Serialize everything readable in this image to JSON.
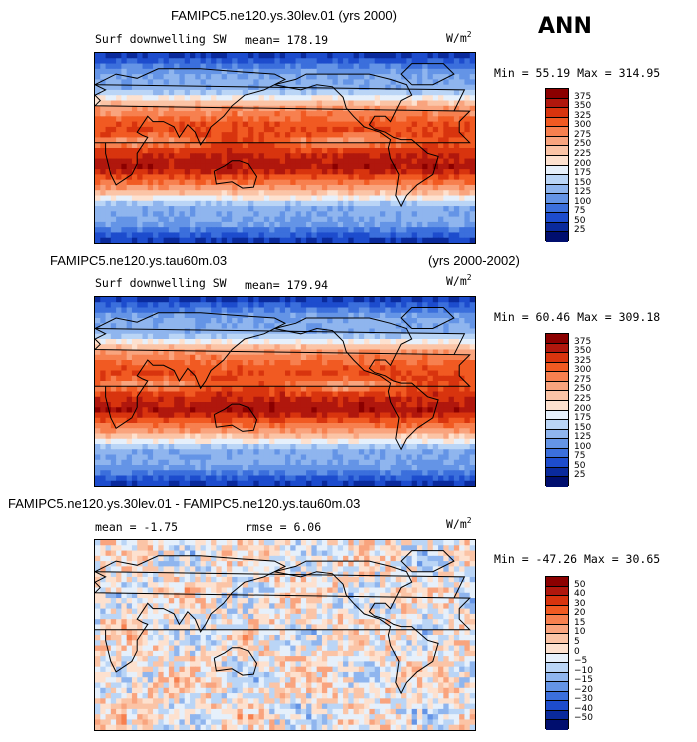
{
  "season": "ANN",
  "panels": [
    {
      "id": "p1",
      "title": "FAMIPC5.ne120.ys.30lev.01 (yrs 2000)",
      "title_right": "",
      "left_label": "Surf downwelling SW",
      "stat_text": "mean= 178.19",
      "rmse_text": "",
      "unit_base": "W/m",
      "unit_exp": "2",
      "minmax_text": "Min =  55.19 Max = 314.95"
    },
    {
      "id": "p2",
      "title": "FAMIPC5.ne120.ys.tau60m.03",
      "title_right": "(yrs 2000-2002)",
      "left_label": "Surf downwelling SW",
      "stat_text": "mean= 179.94",
      "rmse_text": "",
      "unit_base": "W/m",
      "unit_exp": "2",
      "minmax_text": "Min =  60.46 Max = 309.18"
    },
    {
      "id": "p3",
      "title": "FAMIPC5.ne120.ys.30lev.01 - FAMIPC5.ne120.ys.tau60m.03",
      "title_right": "",
      "left_label": "mean =  -1.75",
      "stat_text": "rmse =   6.06",
      "rmse_text": "",
      "unit_base": "W/m",
      "unit_exp": "2",
      "minmax_text": "Min = -47.26 Max =  30.65"
    }
  ],
  "chart_data": [
    {
      "type": "heatmap",
      "title": "FAMIPC5.ne120.ys.30lev.01 (yrs 2000)",
      "variable": "Surf downwelling SW",
      "units": "W/m2",
      "mean": 178.19,
      "min": 55.19,
      "max": 314.95,
      "colorbar_levels": [
        375,
        350,
        325,
        300,
        275,
        250,
        225,
        200,
        175,
        150,
        125,
        100,
        75,
        50,
        25
      ],
      "colorbar_colors": [
        "#8b0000",
        "#b0170d",
        "#d8340e",
        "#f15a22",
        "#f7804f",
        "#f9a47e",
        "#fbc4a6",
        "#fde1cf",
        "#e6f0fb",
        "#bad5f6",
        "#8fb5ee",
        "#6494e6",
        "#3b6fdc",
        "#1d4ccd",
        "#0a2a9c",
        "#000e6e"
      ]
    },
    {
      "type": "heatmap",
      "title": "FAMIPC5.ne120.ys.tau60m.03 (yrs 2000-2002)",
      "variable": "Surf downwelling SW",
      "units": "W/m2",
      "mean": 179.94,
      "min": 60.46,
      "max": 309.18,
      "colorbar_levels": [
        375,
        350,
        325,
        300,
        275,
        250,
        225,
        200,
        175,
        150,
        125,
        100,
        75,
        50,
        25
      ],
      "colorbar_colors": [
        "#8b0000",
        "#b0170d",
        "#d8340e",
        "#f15a22",
        "#f7804f",
        "#f9a47e",
        "#fbc4a6",
        "#fde1cf",
        "#e6f0fb",
        "#bad5f6",
        "#8fb5ee",
        "#6494e6",
        "#3b6fdc",
        "#1d4ccd",
        "#0a2a9c",
        "#000e6e"
      ]
    },
    {
      "type": "heatmap",
      "title": "FAMIPC5.ne120.ys.30lev.01 - FAMIPC5.ne120.ys.tau60m.03",
      "units": "W/m2",
      "mean": -1.75,
      "rmse": 6.06,
      "min": -47.26,
      "max": 30.65,
      "colorbar_levels": [
        "50",
        "40",
        "30",
        "20",
        "15",
        "10",
        "5",
        "0",
        "−5",
        "−10",
        "−15",
        "−20",
        "−30",
        "−40",
        "−50"
      ],
      "colorbar_colors": [
        "#8b0000",
        "#b0170d",
        "#d8340e",
        "#f15a22",
        "#f7804f",
        "#f9a47e",
        "#fbc4a6",
        "#fde1cf",
        "#e6f0fb",
        "#bad5f6",
        "#8fb5ee",
        "#6494e6",
        "#3b6fdc",
        "#1d4ccd",
        "#0a2a9c",
        "#000e6e"
      ]
    }
  ]
}
